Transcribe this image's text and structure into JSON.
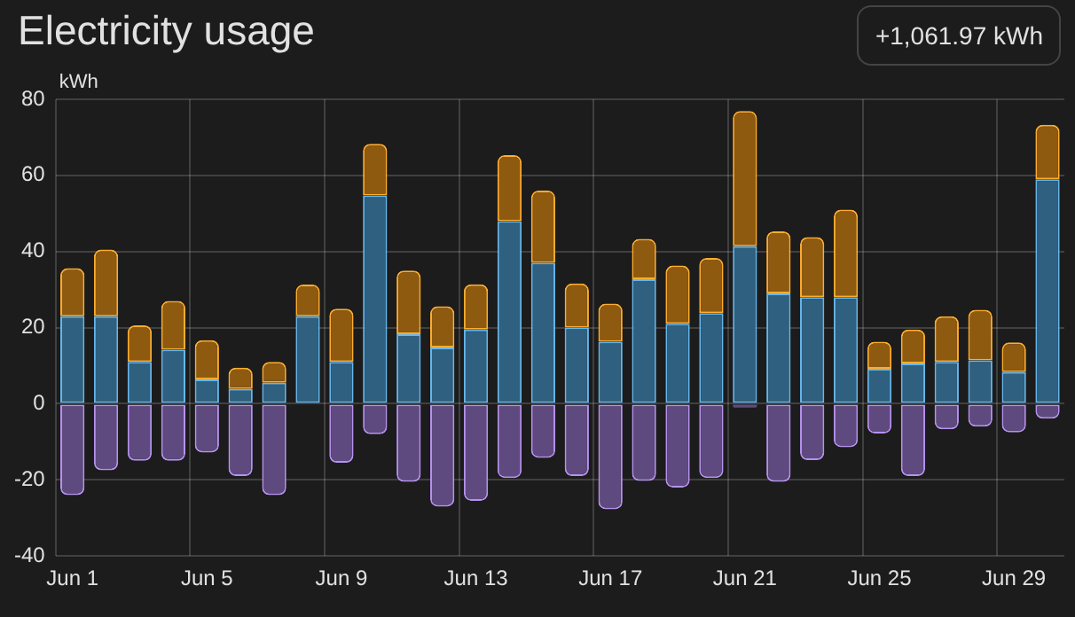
{
  "chart_data": {
    "type": "bar",
    "title": "Electricity usage",
    "ylabel": "kWh",
    "annotations": [
      "+1,061.97 kWh"
    ],
    "categories": [
      "Jun 1",
      null,
      null,
      null,
      "Jun 5",
      null,
      null,
      null,
      "Jun 9",
      null,
      null,
      null,
      "Jun 13",
      null,
      null,
      null,
      "Jun 17",
      null,
      null,
      null,
      "Jun 21",
      null,
      null,
      null,
      "Jun 25",
      null,
      null,
      null,
      "Jun 29",
      null
    ],
    "series": [
      {
        "color": "#30607f",
        "values": [
          23,
          23,
          11,
          14.2,
          6.4,
          3.9,
          5.5,
          23,
          11,
          54.7,
          18.3,
          14.8,
          19.5,
          48,
          37,
          20,
          16.3,
          32.7,
          21,
          23.8,
          41.4,
          29,
          28,
          28,
          9.2,
          10.6,
          11,
          11.4,
          8.3,
          59
        ]
      },
      {
        "color": "#8e5a10",
        "values": [
          12.6,
          17.5,
          9.6,
          12.8,
          10.3,
          5.6,
          5.5,
          8.3,
          14,
          13.6,
          16.7,
          10.8,
          11.9,
          17.3,
          19,
          11.6,
          10,
          10.6,
          15.3,
          14.5,
          35.5,
          16.3,
          15.8,
          23,
          7.1,
          8.9,
          12,
          13.3,
          7.8,
          14.3
        ]
      },
      {
        "color": "#5f4a80",
        "values": [
          -24,
          -17.5,
          -15,
          -15,
          -12.8,
          -19,
          -24,
          null,
          -15.5,
          -8,
          -20.5,
          -27,
          -25.5,
          -19.5,
          -14.2,
          -19,
          -27.7,
          -20.3,
          -22,
          -19.5,
          -1,
          -20.5,
          -14.8,
          -11.4,
          -7.8,
          -19,
          -6.7,
          -6,
          -7.5,
          -3.9
        ]
      }
    ],
    "stacked": true,
    "ylim": [
      -40,
      80
    ],
    "yticks": [
      -40,
      -20,
      0,
      20,
      40,
      60,
      80
    ],
    "grid": true,
    "legend": false
  }
}
